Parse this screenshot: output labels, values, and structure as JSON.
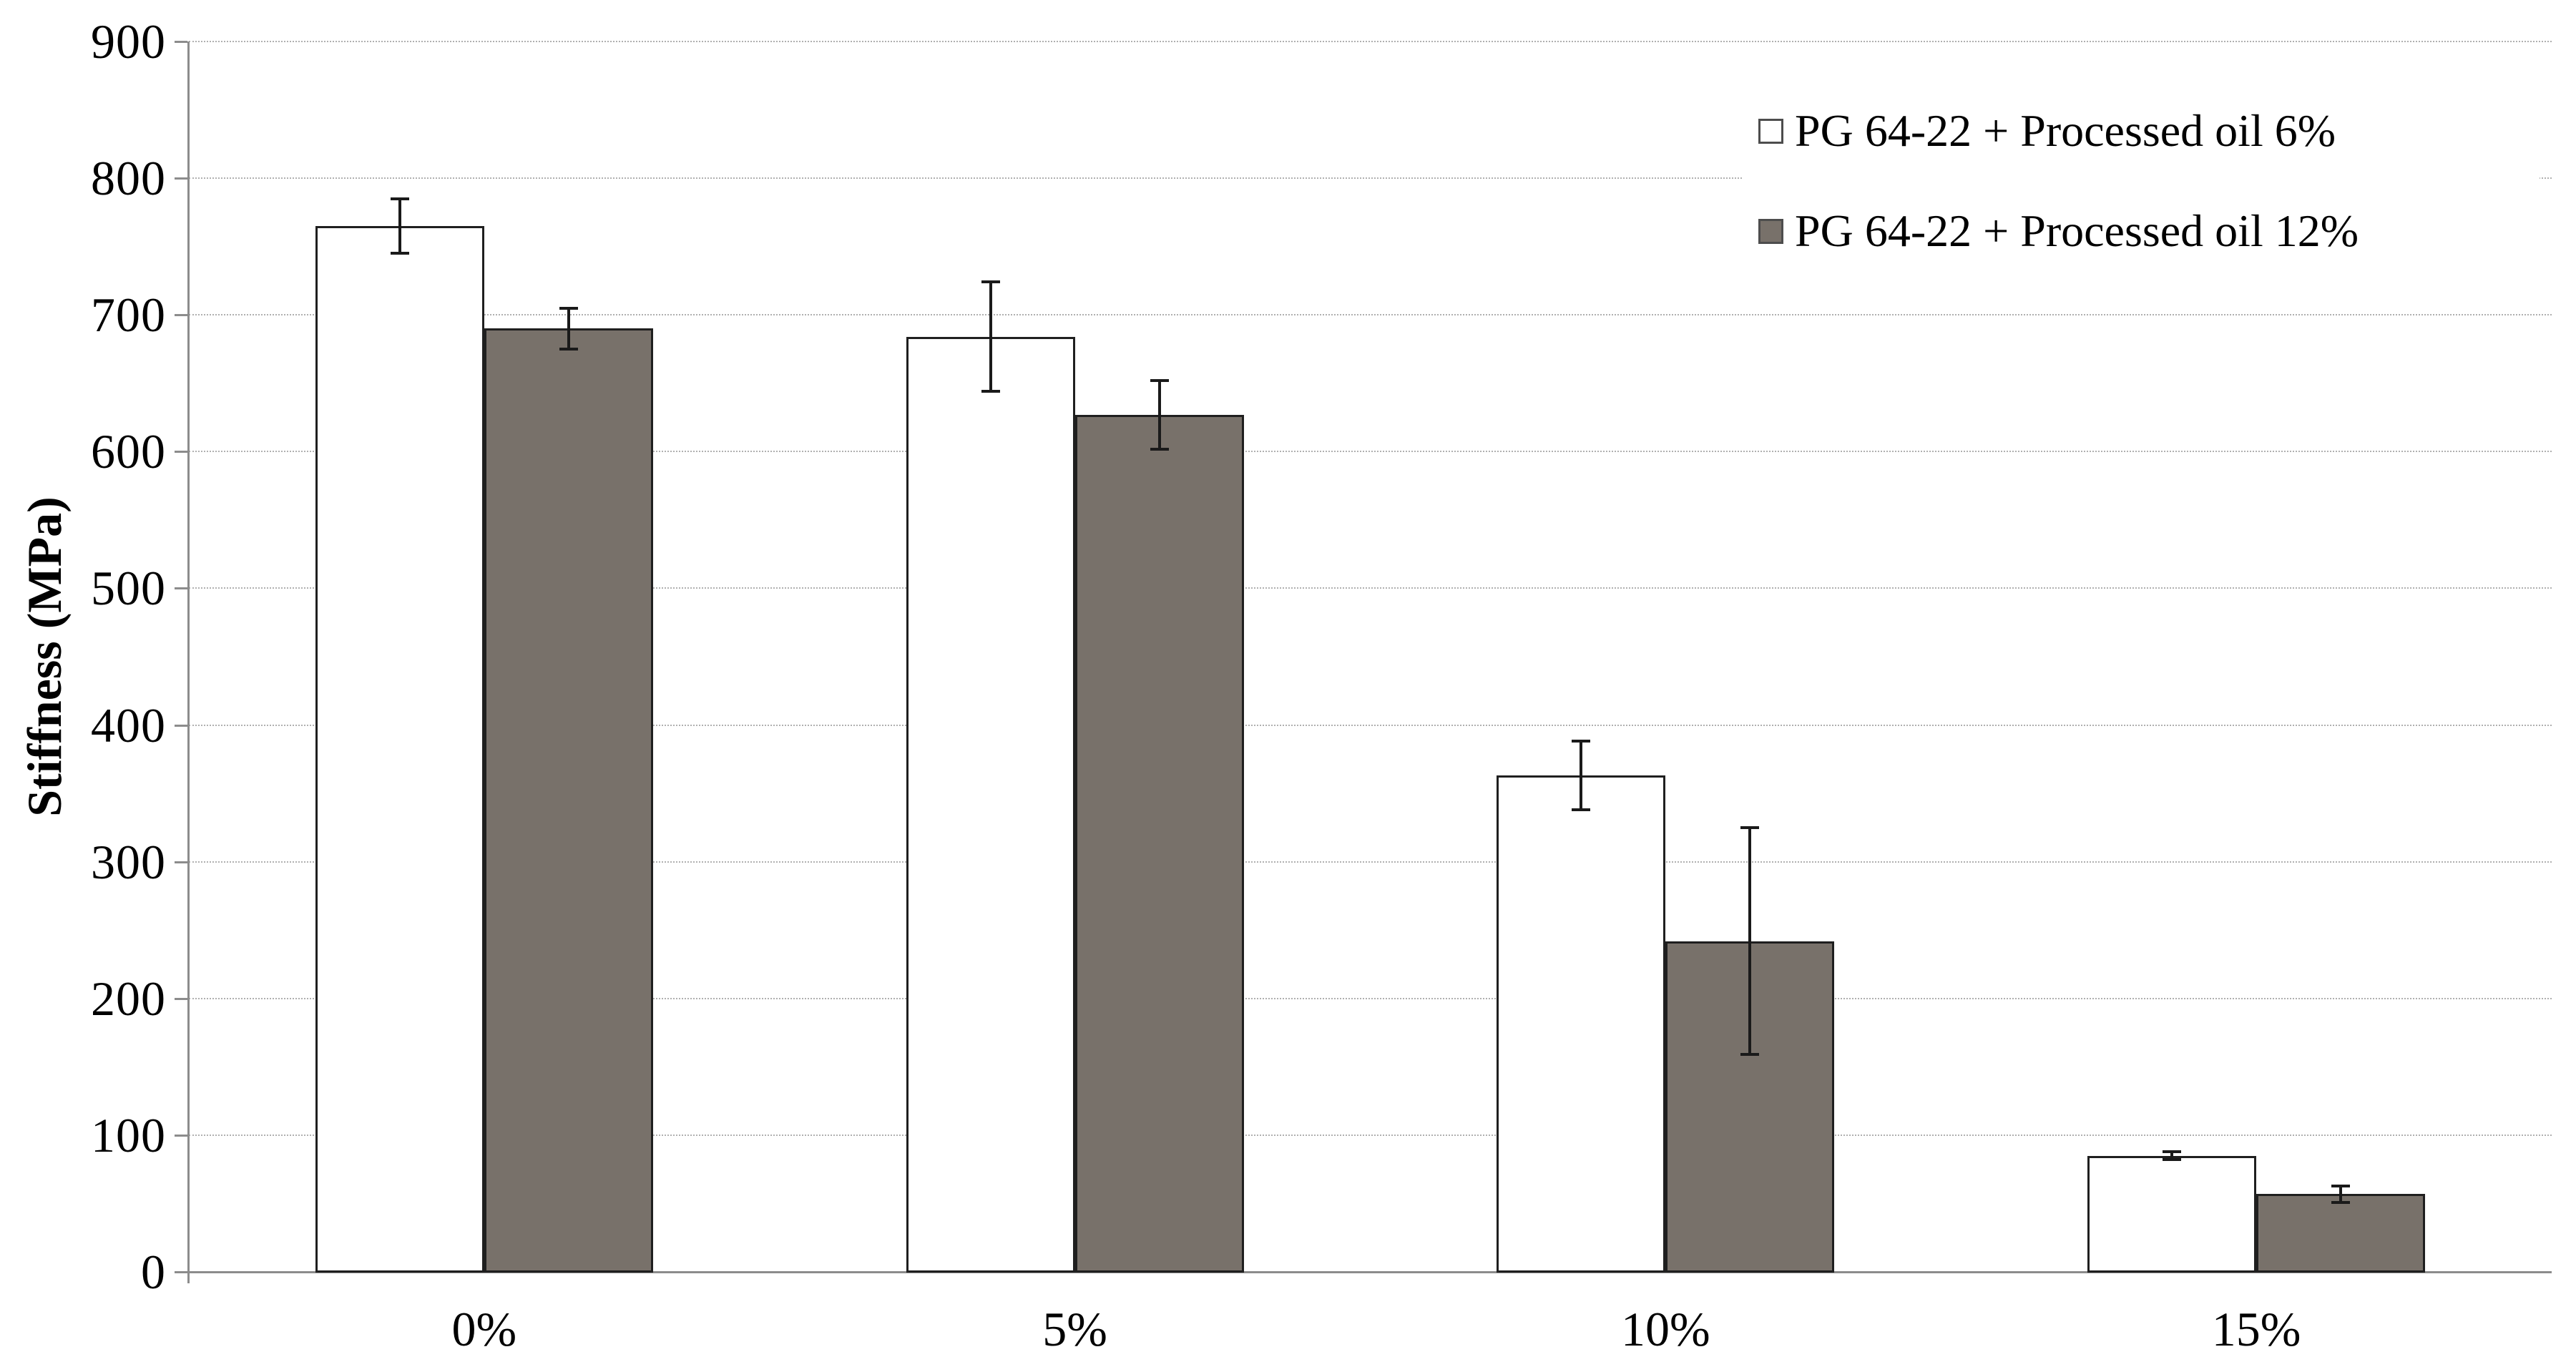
{
  "figure": {
    "background": "#ffffff",
    "title": ""
  },
  "y_axis": {
    "title": "Stiffness (MPa)",
    "ticks": [
      "0",
      "100",
      "200",
      "300",
      "400",
      "500",
      "600",
      "700",
      "800",
      "900"
    ]
  },
  "x_axis": {
    "categories": [
      "0%",
      "5%",
      "10%",
      "15%"
    ]
  },
  "legend": {
    "position": "top-right",
    "items": [
      {
        "label": "PG 64-22 + Processed oil 6%",
        "swatch_fill": "#ffffff"
      },
      {
        "label": "PG 64-22 + Processed oil 12%",
        "swatch_fill": "#78716a"
      }
    ]
  },
  "chart_data": {
    "type": "bar",
    "subtype": "grouped-with-error-bars",
    "title": "",
    "xlabel": "",
    "ylabel": "Stiffness (MPa)",
    "categories": [
      "0%",
      "5%",
      "10%",
      "15%"
    ],
    "series": [
      {
        "name": "PG 64-22 + Processed oil 6%",
        "fill": "#ffffff",
        "border": "#1f1f1f",
        "values": [
          765,
          684,
          363,
          85
        ],
        "error": [
          20,
          40,
          25,
          3
        ]
      },
      {
        "name": "PG 64-22 + Processed oil 12%",
        "fill": "#78716a",
        "border": "#1f1f1f",
        "values": [
          690,
          627,
          242,
          57
        ],
        "error": [
          15,
          25,
          83,
          6
        ]
      }
    ],
    "ylim": [
      0,
      900
    ],
    "ytick_step": 100,
    "grid": "horizontal-dotted",
    "legend_position": "top-right",
    "error_bars": true
  },
  "colors": {
    "grid": "#b0b0b0",
    "axis": "#8c8c8c",
    "bar_border": "#1f1f1f",
    "error_bar": "#1a1a1a",
    "text": "#000000",
    "series_6pct_fill": "#ffffff",
    "series_12pct_fill": "#78716a"
  }
}
